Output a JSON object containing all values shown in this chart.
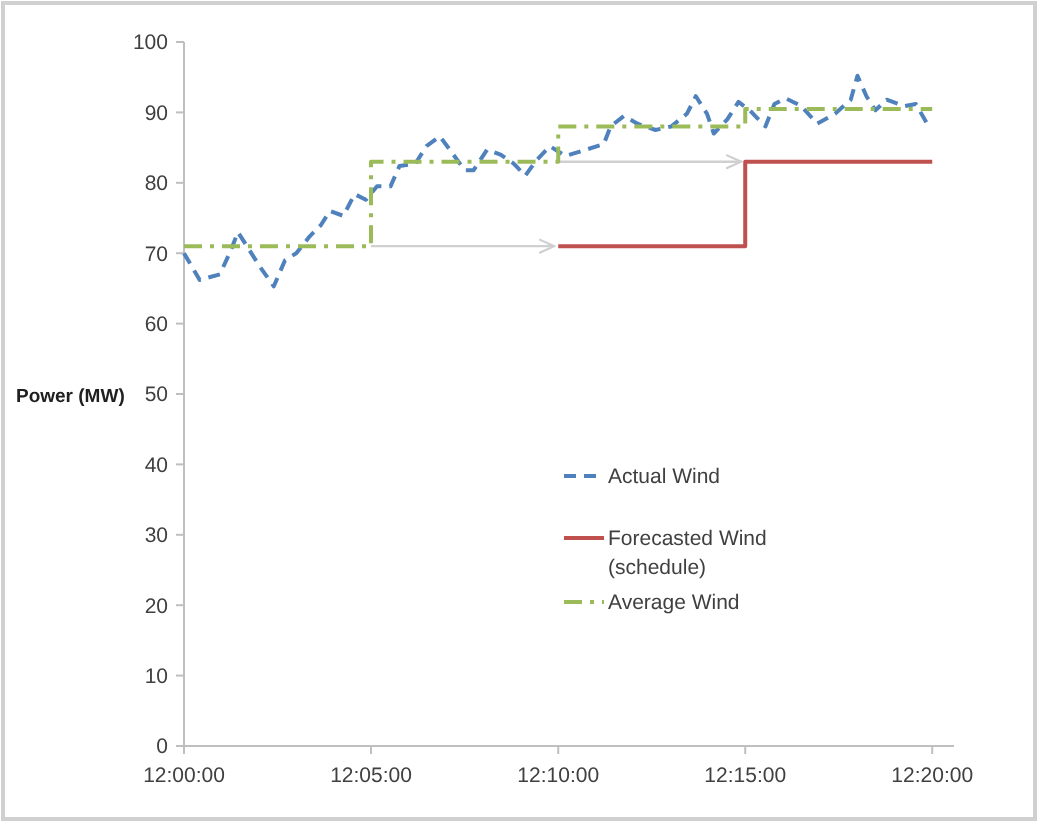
{
  "chart_data": {
    "type": "line",
    "ylabel": "Power (MW)",
    "xlim": [
      12,
      12.343
    ],
    "xticks": [
      {
        "value": 12,
        "label": "12:00:00"
      },
      {
        "value": 12.0833,
        "label": "12:05:00"
      },
      {
        "value": 12.1667,
        "label": "12:10:00"
      },
      {
        "value": 12.25,
        "label": "12:15:00"
      },
      {
        "value": 12.3333,
        "label": "12:20:00"
      }
    ],
    "ylim": [
      0,
      100
    ],
    "yticks": [
      0,
      10,
      20,
      30,
      40,
      50,
      60,
      70,
      80,
      90,
      100
    ],
    "grid": false,
    "legend": "center",
    "series": [
      {
        "name": "Actual Wind",
        "color": "#4f81bd",
        "line_style": "dashed",
        "x": [
          12.0,
          12.007,
          12.016,
          12.021,
          12.024,
          12.028,
          12.034,
          12.04,
          12.045,
          12.05,
          12.056,
          12.061,
          12.065,
          12.071,
          12.076,
          12.081,
          12.086,
          12.092,
          12.096,
          12.103,
          12.108,
          12.114,
          12.12,
          12.125,
          12.129,
          12.135,
          12.141,
          12.147,
          12.152,
          12.157,
          12.163,
          12.17,
          12.179,
          12.187,
          12.19,
          12.196,
          12.202,
          12.21,
          12.217,
          12.224,
          12.228,
          12.233,
          12.236,
          12.242,
          12.247,
          12.252,
          12.259,
          12.263,
          12.268,
          12.275,
          12.282,
          12.29,
          12.297,
          12.3,
          12.304,
          12.308,
          12.313,
          12.321,
          12.326,
          12.331
        ],
        "values": [
          70,
          66.2,
          67,
          70.5,
          73,
          71,
          68,
          65.3,
          69,
          70,
          72.4,
          74,
          76,
          75.3,
          78.4,
          77.6,
          79.5,
          79.5,
          82.4,
          82.7,
          85.2,
          86.6,
          84,
          81.8,
          81.8,
          84.7,
          84,
          82.7,
          81,
          83.2,
          85.2,
          83.8,
          84.7,
          85.5,
          88,
          89.5,
          88.4,
          87.5,
          88,
          89.8,
          92.3,
          89.8,
          87,
          89,
          91.5,
          90.3,
          88,
          91.2,
          92,
          90.9,
          88.4,
          89.8,
          91.8,
          95.2,
          92.3,
          90.3,
          91.8,
          90.9,
          91.2,
          88.4
        ]
      },
      {
        "name": "Forecasted Wind (schedule)",
        "type": "step",
        "color": "#c0504d",
        "line_style": "solid",
        "x": [
          12.1667,
          12.25,
          12.3333
        ],
        "values": [
          71,
          83,
          83
        ]
      },
      {
        "name": "Average Wind",
        "type": "step",
        "color": "#9bbb59",
        "line_style": "dashed",
        "x": [
          12,
          12.0833,
          12.1667,
          12.25,
          12.3333
        ],
        "values": [
          71,
          83,
          88,
          90.5,
          90.5
        ]
      }
    ]
  }
}
